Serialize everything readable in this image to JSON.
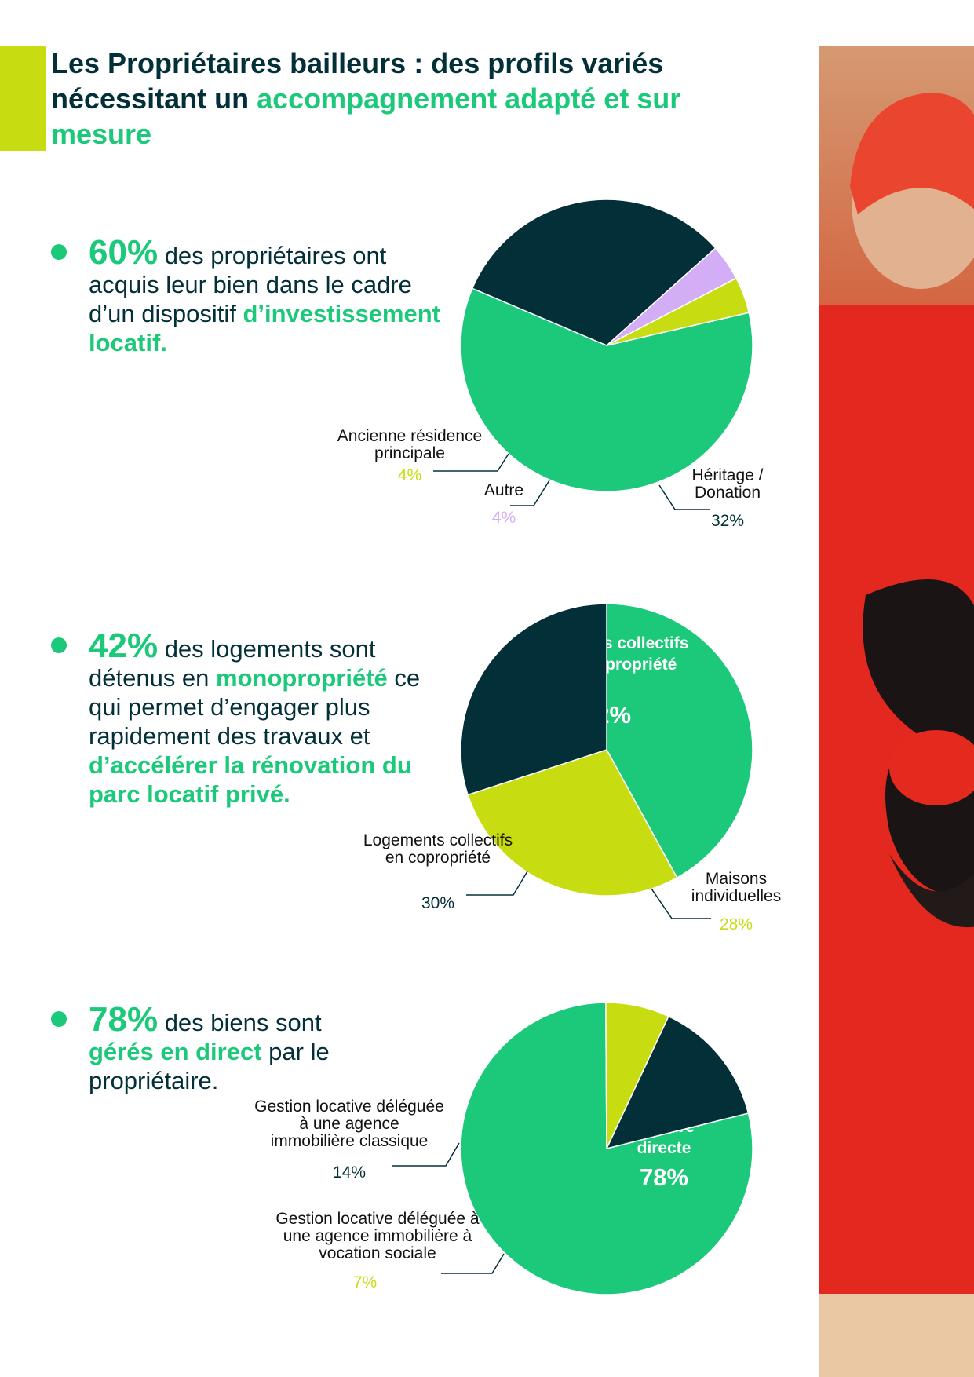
{
  "title": {
    "part1": "Les Propriétaires bailleurs : des profils variés nécessitant un ",
    "part2": "accompagnement adapté et sur mesure"
  },
  "colors": {
    "green": "#1cc97a",
    "dark": "#033038",
    "lime": "#c8dd11",
    "lilac": "#d3aef6"
  },
  "bullets": [
    {
      "big": "60%",
      "t1": " des propriétaires ont acquis leur bien dans le cadre d’un dispositif ",
      "hl1": "d’investissement locatif.",
      "t2": ""
    },
    {
      "big": "42%",
      "t1": " des logements sont détenus en ",
      "hl1": "monopropriété",
      "t2": " ce qui permet d’engager plus rapidement des travaux et ",
      "hl2": "d’accélérer la rénovation du parc locatif privé."
    },
    {
      "big": "78%",
      "t1": " des biens sont ",
      "hl1": "gérés en direct",
      "t2": " par le propriétaire."
    }
  ],
  "chart_data": [
    {
      "type": "pie",
      "slices": [
        {
          "label": "Investissement locatif",
          "value": 60,
          "pct": "60%",
          "color": "#1cc97a"
        },
        {
          "label": "Héritage / Donation",
          "value": 32,
          "pct": "32%",
          "color": "#033038"
        },
        {
          "label": "Autre",
          "value": 4,
          "pct": "4%",
          "color": "#d3aef6"
        },
        {
          "label": "Ancienne résidence principale",
          "value": 4,
          "pct": "4%",
          "color": "#c8dd11"
        }
      ]
    },
    {
      "type": "pie",
      "slices": [
        {
          "label": "Logements collectifs en monopropriété",
          "value": 42,
          "pct": "42%",
          "color": "#1cc97a"
        },
        {
          "label": "Maisons individuelles",
          "value": 28,
          "pct": "28%",
          "color": "#c8dd11"
        },
        {
          "label": "Logements collectifs en copropriété",
          "value": 30,
          "pct": "30%",
          "color": "#033038"
        }
      ]
    },
    {
      "type": "pie",
      "slices": [
        {
          "label": "Gestion locative directe",
          "value": 78,
          "pct": "78%",
          "color": "#1cc97a"
        },
        {
          "label": "Gestion locative déléguée à une agence immobilière à vocation sociale",
          "value": 7,
          "pct": "7%",
          "color": "#c8dd11"
        },
        {
          "label": "Gestion locative déléguée à une agence immobilière classique",
          "value": 14,
          "pct": "14%",
          "color": "#033038"
        }
      ]
    }
  ]
}
